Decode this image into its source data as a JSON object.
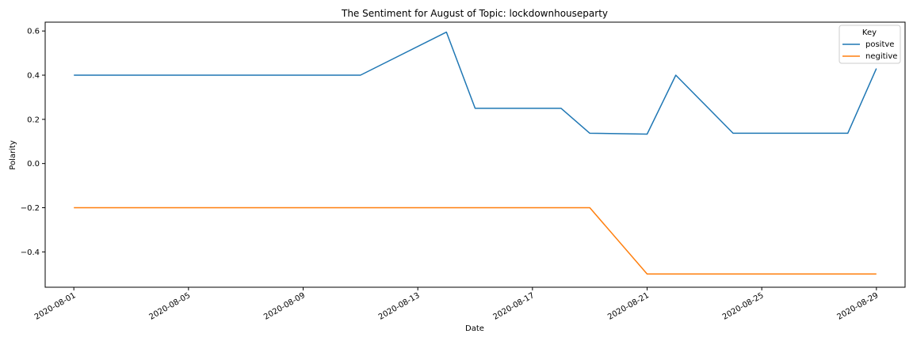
{
  "chart_data": {
    "type": "line",
    "title": "The Sentiment for August of Topic: lockdownhouseparty",
    "xlabel": "Date",
    "ylabel": "Polarity",
    "x_axis_type": "date",
    "xlim": [
      "2020-07-31",
      "2020-08-30"
    ],
    "ylim": [
      -0.56,
      0.64
    ],
    "x_ticks": [
      "2020-08-01",
      "2020-08-05",
      "2020-08-09",
      "2020-08-13",
      "2020-08-17",
      "2020-08-21",
      "2020-08-25",
      "2020-08-29"
    ],
    "y_ticks": [
      -0.4,
      -0.2,
      0.0,
      0.2,
      0.4,
      0.6
    ],
    "y_tick_labels": [
      "−0.4",
      "−0.2",
      "0.0",
      "0.2",
      "0.4",
      "0.6"
    ],
    "grid": false,
    "legend": {
      "title": "Key",
      "position": "top-right"
    },
    "series": [
      {
        "name": "positve",
        "color": "#1f77b4",
        "x": [
          "2020-08-01",
          "2020-08-11",
          "2020-08-14",
          "2020-08-15",
          "2020-08-18",
          "2020-08-19",
          "2020-08-21",
          "2020-08-22",
          "2020-08-24",
          "2020-08-28",
          "2020-08-29"
        ],
        "y": [
          0.4,
          0.4,
          0.595,
          0.25,
          0.25,
          0.137,
          0.133,
          0.4,
          0.137,
          0.137,
          0.43
        ]
      },
      {
        "name": "negitive",
        "color": "#ff7f0e",
        "x": [
          "2020-08-01",
          "2020-08-19",
          "2020-08-21",
          "2020-08-29"
        ],
        "y": [
          -0.2,
          -0.2,
          -0.5,
          -0.5
        ]
      }
    ]
  }
}
